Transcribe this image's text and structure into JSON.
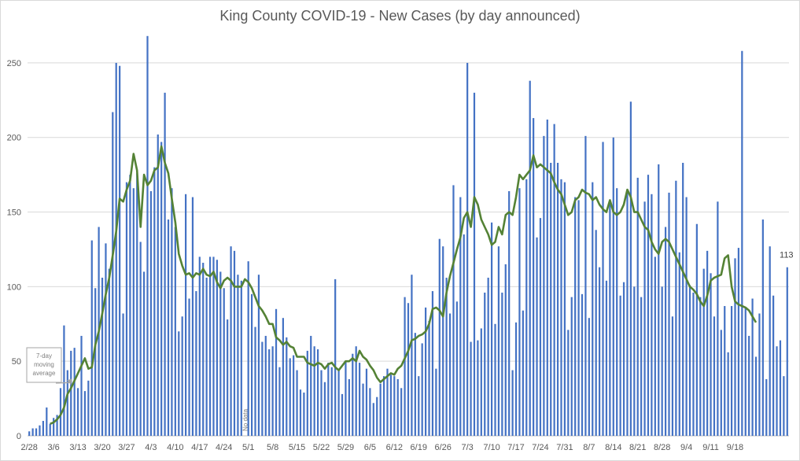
{
  "chart_data": {
    "type": "bar",
    "title": "King County COVID-19 - New Cases (by day announced)",
    "xlabel": "",
    "ylabel": "",
    "ylim": [
      0,
      270
    ],
    "yticks": [
      0,
      50,
      100,
      150,
      200,
      250
    ],
    "grid": true,
    "x_tick_labels": [
      "2/28",
      "3/6",
      "3/13",
      "3/20",
      "3/27",
      "4/3",
      "4/10",
      "4/17",
      "4/24",
      "5/1",
      "5/8",
      "5/15",
      "5/22",
      "5/29",
      "6/5",
      "6/12",
      "6/19",
      "6/26",
      "7/3",
      "7/10",
      "7/17",
      "7/24",
      "7/31",
      "8/7",
      "8/14",
      "8/21",
      "8/28",
      "9/4",
      "9/11",
      "9/18"
    ],
    "series": [
      {
        "name": "",
        "kind": "bar",
        "color": "#4472c4",
        "values": [
          3,
          5,
          5,
          7,
          10,
          19,
          8,
          12,
          14,
          32,
          74,
          44,
          57,
          59,
          32,
          67,
          30,
          37,
          131,
          99,
          140,
          106,
          129,
          112,
          217,
          250,
          248,
          82,
          170,
          175,
          166,
          176,
          130,
          110,
          268,
          164,
          180,
          202,
          197,
          230,
          145,
          166,
          140,
          70,
          80,
          162,
          92,
          160,
          97,
          120,
          116,
          106,
          120,
          120,
          118,
          110,
          99,
          78,
          127,
          124,
          108,
          104,
          0,
          117,
          95,
          73,
          108,
          63,
          67,
          58,
          60,
          85,
          46,
          79,
          66,
          52,
          54,
          44,
          31,
          29,
          57,
          67,
          60,
          58,
          44,
          36,
          49,
          46,
          105,
          45,
          28,
          50,
          38,
          55,
          60,
          49,
          35,
          45,
          32,
          22,
          26,
          35,
          40,
          45,
          41,
          40,
          38,
          32,
          93,
          89,
          108,
          69,
          40,
          62,
          86,
          77,
          97,
          45,
          132,
          127,
          106,
          82,
          168,
          90,
          160,
          135,
          250,
          63,
          230,
          64,
          72,
          96,
          106,
          143,
          75,
          127,
          96,
          115,
          164,
          44,
          76,
          166,
          84,
          172,
          238,
          213,
          133,
          146,
          201,
          212,
          183,
          209,
          183,
          172,
          170,
          71,
          93,
          160,
          158,
          95,
          201,
          79,
          170,
          138,
          113,
          197,
          104,
          156,
          200,
          166,
          94,
          103,
          164,
          224,
          100,
          173,
          93,
          157,
          175,
          162,
          120,
          182,
          100,
          140,
          163,
          80,
          171,
          123,
          183,
          160,
          101,
          96,
          142,
          93,
          112,
          124,
          109,
          80,
          157,
          71,
          87,
          56,
          87,
          119,
          126,
          258,
          86,
          67,
          92,
          53,
          82,
          145,
          38,
          127,
          94,
          60,
          64,
          40,
          113
        ],
        "last_label": "113"
      },
      {
        "name": "",
        "kind": "line",
        "label": "7-day moving average",
        "color": "#548235",
        "values": [
          null,
          null,
          null,
          null,
          null,
          null,
          8,
          9,
          11,
          14,
          19,
          28,
          32,
          37,
          42,
          47,
          52,
          45,
          46,
          61,
          70,
          82,
          95,
          106,
          121,
          137,
          159,
          157,
          165,
          171,
          189,
          178,
          140,
          175,
          168,
          171,
          178,
          180,
          194,
          183,
          176,
          159,
          143,
          122,
          114,
          108,
          109,
          106,
          109,
          108,
          112,
          108,
          107,
          110,
          103,
          99,
          104,
          106,
          104,
          100,
          100,
          100,
          105,
          103,
          99,
          93,
          87,
          84,
          80,
          75,
          75,
          66,
          64,
          61,
          63,
          60,
          59,
          53,
          53,
          53,
          49,
          48,
          47,
          49,
          48,
          45,
          48,
          49,
          46,
          44,
          47,
          50,
          50,
          52,
          50,
          57,
          53,
          51,
          47,
          44,
          39,
          36,
          38,
          40,
          42,
          41,
          45,
          47,
          52,
          57,
          64,
          65,
          67,
          68,
          70,
          75,
          85,
          86,
          84,
          80,
          96,
          107,
          116,
          125,
          133,
          146,
          150,
          140,
          160,
          155,
          145,
          140,
          135,
          128,
          130,
          140,
          135,
          148,
          150,
          148,
          160,
          175,
          172,
          175,
          178,
          188,
          180,
          182,
          180,
          178,
          176,
          170,
          165,
          162,
          155,
          148,
          150,
          158,
          160,
          165,
          163,
          162,
          158,
          160,
          155,
          152,
          150,
          158,
          150,
          148,
          150,
          155,
          165,
          160,
          150,
          150,
          145,
          140,
          138,
          130,
          125,
          122,
          130,
          132,
          130,
          125,
          120,
          115,
          110,
          105,
          100,
          98,
          95,
          90,
          87,
          94,
          104,
          106,
          107,
          108,
          119,
          121,
          100,
          90,
          88,
          87,
          86,
          84,
          80,
          76
        ],
        "avg_window": 7
      }
    ],
    "annotations": [
      {
        "text": "No data",
        "x_index": 62
      },
      {
        "text": "7-day moving average",
        "points_to_index": 12
      }
    ]
  },
  "annotation_text": {
    "no_data": "No data",
    "moving_avg": [
      "7-day",
      "moving",
      "average"
    ],
    "last_value": "113"
  }
}
